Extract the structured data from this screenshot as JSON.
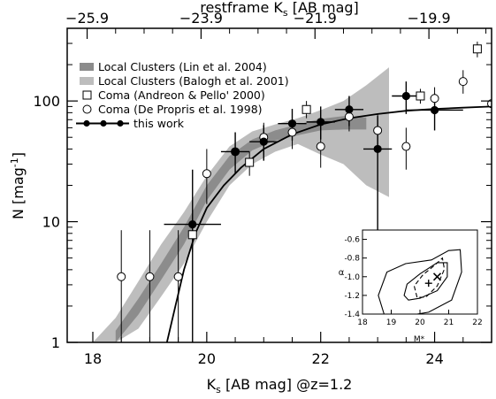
{
  "chart_data": {
    "type": "scatter",
    "xlabel_main": "K",
    "xlabel_sub": "s",
    "xlabel_rest": " [AB mag] @z=1.2",
    "x2label_main": "restframe K",
    "x2label_sub": "s",
    "x2label_rest": " [AB mag]",
    "ylabel_main": "N [mag",
    "ylabel_sup": "-1",
    "ylabel_rest": "]",
    "xlim": [
      17.55,
      25.0
    ],
    "ylim": [
      1,
      400
    ],
    "yscale": "log",
    "x_ticks": [
      {
        "v": 18,
        "label": "18"
      },
      {
        "v": 20,
        "label": "20"
      },
      {
        "v": 22,
        "label": "22"
      },
      {
        "v": 24,
        "label": "24"
      }
    ],
    "x2_ticks": [
      {
        "v": 17.9,
        "label": "−25.9"
      },
      {
        "v": 19.9,
        "label": "−23.9"
      },
      {
        "v": 21.9,
        "label": "−21.9"
      },
      {
        "v": 23.9,
        "label": "−19.9"
      }
    ],
    "y_ticks": [
      {
        "v": 1,
        "label": "1"
      },
      {
        "v": 10,
        "label": "10"
      },
      {
        "v": 100,
        "label": "100"
      }
    ],
    "legend_position": "top-left",
    "legend": [
      {
        "label": "Local Clusters (Lin et al. 2004)",
        "marker": "band-dark"
      },
      {
        "label": "Local Clusters (Balogh et al. 2001)",
        "marker": "band-light"
      },
      {
        "label": "Coma (Andreon & Pello' 2000)",
        "marker": "open-square"
      },
      {
        "label": "Coma (De Propris et al. 1998)",
        "marker": "open-circle"
      },
      {
        "label": "this work",
        "marker": "filled-circle-line"
      }
    ],
    "colors": {
      "band_dark": "#8c8c8c",
      "band_light": "#bdbdbd",
      "marks": "#000000"
    },
    "series": [
      {
        "name": "Local Clusters (Balogh et al. 2001)",
        "band": [
          {
            "x": 18.0,
            "lo": 1.0,
            "hi": 1.0
          },
          {
            "x": 18.4,
            "lo": 1.0,
            "hi": 1.6
          },
          {
            "x": 18.8,
            "lo": 1.3,
            "hi": 3.2
          },
          {
            "x": 19.2,
            "lo": 2.4,
            "hi": 6.5
          },
          {
            "x": 19.6,
            "lo": 4.5,
            "hi": 12.0
          },
          {
            "x": 20.0,
            "lo": 10.0,
            "hi": 24.0
          },
          {
            "x": 20.4,
            "lo": 20.0,
            "hi": 42.0
          },
          {
            "x": 20.8,
            "lo": 30.0,
            "hi": 56.0
          },
          {
            "x": 21.2,
            "lo": 38.0,
            "hi": 64.0
          },
          {
            "x": 21.6,
            "lo": 44.0,
            "hi": 72.0
          },
          {
            "x": 22.0,
            "lo": 36.0,
            "hi": 84.0
          },
          {
            "x": 22.4,
            "lo": 30.0,
            "hi": 100.0
          },
          {
            "x": 22.8,
            "lo": 20.0,
            "hi": 135.0
          },
          {
            "x": 23.2,
            "lo": 16.0,
            "hi": 190.0
          }
        ]
      },
      {
        "name": "Local Clusters (Lin et al. 2004)",
        "band": [
          {
            "x": 18.4,
            "lo": 1.0,
            "hi": 1.25
          },
          {
            "x": 18.8,
            "lo": 1.7,
            "hi": 2.3
          },
          {
            "x": 19.2,
            "lo": 3.3,
            "hi": 4.5
          },
          {
            "x": 19.6,
            "lo": 6.5,
            "hi": 9.0
          },
          {
            "x": 20.0,
            "lo": 15.0,
            "hi": 20.0
          },
          {
            "x": 20.4,
            "lo": 27.0,
            "hi": 35.0
          },
          {
            "x": 20.8,
            "lo": 39.0,
            "hi": 48.0
          },
          {
            "x": 21.2,
            "lo": 47.0,
            "hi": 57.0
          },
          {
            "x": 21.6,
            "lo": 52.0,
            "hi": 64.0
          },
          {
            "x": 22.0,
            "lo": 57.0,
            "hi": 71.0
          },
          {
            "x": 22.4,
            "lo": 58.0,
            "hi": 75.0
          },
          {
            "x": 22.8,
            "lo": 58.0,
            "hi": 73.0
          }
        ]
      },
      {
        "name": "Coma (Andreon & Pello' 2000)",
        "marker": "open-square",
        "points": [
          {
            "x": 19.75,
            "y": 7.8,
            "lo": 5.6,
            "hi": 10.5
          },
          {
            "x": 20.75,
            "y": 31,
            "lo": 24,
            "hi": 38
          },
          {
            "x": 21.75,
            "y": 85,
            "lo": 72,
            "hi": 100
          },
          {
            "x": 23.75,
            "y": 110,
            "lo": 95,
            "hi": 126
          },
          {
            "x": 24.75,
            "y": 270,
            "lo": 230,
            "hi": 310
          }
        ]
      },
      {
        "name": "Coma (De Propris et al. 1998)",
        "marker": "open-circle",
        "points": [
          {
            "x": 18.5,
            "y": 3.5,
            "lo": 1.0,
            "hi": 8.5
          },
          {
            "x": 19.0,
            "y": 3.5,
            "lo": 1.0,
            "hi": 8.5
          },
          {
            "x": 19.5,
            "y": 3.5,
            "lo": 1.0,
            "hi": 8.5
          },
          {
            "x": 20.0,
            "y": 25,
            "lo": 14,
            "hi": 40
          },
          {
            "x": 20.5,
            "y": 38,
            "lo": 25,
            "hi": 55
          },
          {
            "x": 21.0,
            "y": 50,
            "lo": 36,
            "hi": 66
          },
          {
            "x": 21.5,
            "y": 55,
            "lo": 40,
            "hi": 72
          },
          {
            "x": 22.0,
            "y": 42,
            "lo": 28,
            "hi": 60
          },
          {
            "x": 22.5,
            "y": 74,
            "lo": 56,
            "hi": 95
          },
          {
            "x": 23.0,
            "y": 57,
            "lo": 40,
            "hi": 78
          },
          {
            "x": 23.5,
            "y": 42,
            "lo": 27,
            "hi": 60
          },
          {
            "x": 24.0,
            "y": 105,
            "lo": 82,
            "hi": 130
          },
          {
            "x": 24.5,
            "y": 145,
            "lo": 115,
            "hi": 180
          },
          {
            "x": 25.0,
            "y": 95,
            "lo": 70,
            "hi": 125
          }
        ]
      },
      {
        "name": "this work",
        "marker": "filled-circle",
        "points": [
          {
            "x": 19.75,
            "y": 9.5,
            "xerr": 0.5,
            "lo": 1.0,
            "hi": 27
          },
          {
            "x": 20.5,
            "y": 38,
            "xerr": 0.25,
            "lo": 25,
            "hi": 55
          },
          {
            "x": 21.0,
            "y": 46,
            "xerr": 0.25,
            "lo": 32,
            "hi": 63
          },
          {
            "x": 21.5,
            "y": 65,
            "xerr": 0.25,
            "lo": 47,
            "hi": 86
          },
          {
            "x": 22.0,
            "y": 67,
            "xerr": 0.25,
            "lo": 48,
            "hi": 90
          },
          {
            "x": 22.5,
            "y": 85,
            "xerr": 0.25,
            "lo": 62,
            "hi": 110
          },
          {
            "x": 23.0,
            "y": 40,
            "xerr": 0.25,
            "lo": 5.5,
            "hi": 75
          },
          {
            "x": 23.5,
            "y": 110,
            "xerr": 0.25,
            "lo": 78,
            "hi": 145
          },
          {
            "x": 24.0,
            "y": 84,
            "xerr": 0.5,
            "lo": 57,
            "hi": 115
          }
        ]
      },
      {
        "name": "this work fit",
        "curve": [
          {
            "x": 19.3,
            "y": 1.0
          },
          {
            "x": 19.45,
            "y": 2.0
          },
          {
            "x": 19.6,
            "y": 4.0
          },
          {
            "x": 19.8,
            "y": 8.0
          },
          {
            "x": 20.0,
            "y": 13.0
          },
          {
            "x": 20.3,
            "y": 20.0
          },
          {
            "x": 20.6,
            "y": 28.0
          },
          {
            "x": 21.0,
            "y": 40.0
          },
          {
            "x": 21.5,
            "y": 53.0
          },
          {
            "x": 22.0,
            "y": 64.0
          },
          {
            "x": 22.5,
            "y": 72.0
          },
          {
            "x": 23.0,
            "y": 78.0
          },
          {
            "x": 23.5,
            "y": 83.0
          },
          {
            "x": 24.0,
            "y": 86.0
          },
          {
            "x": 24.5,
            "y": 88.0
          },
          {
            "x": 25.0,
            "y": 90.0
          }
        ]
      }
    ],
    "inset": {
      "xlabel": "M*",
      "ylabel": "α",
      "xlim": [
        18,
        22
      ],
      "ylim": [
        -1.4,
        -0.5
      ],
      "x_ticks": [
        {
          "v": 18,
          "label": "18"
        },
        {
          "v": 19,
          "label": "19"
        },
        {
          "v": 20,
          "label": "20"
        },
        {
          "v": 21,
          "label": "21"
        },
        {
          "v": 22,
          "label": "22"
        }
      ],
      "y_ticks": [
        {
          "v": -0.6,
          "label": "-0.6"
        },
        {
          "v": -0.8,
          "label": "-0.8"
        },
        {
          "v": -1.0,
          "label": "-1.0"
        },
        {
          "v": -1.2,
          "label": "-1.2"
        },
        {
          "v": -1.4,
          "label": "-1.4"
        }
      ],
      "best_fit_x": {
        "x": 20.6,
        "y": -1.0
      },
      "best_fit_plus": {
        "x": 20.3,
        "y": -1.07
      },
      "contour_outer": [
        [
          18.75,
          -1.4
        ],
        [
          18.55,
          -1.2
        ],
        [
          18.85,
          -0.95
        ],
        [
          19.5,
          -0.86
        ],
        [
          20.4,
          -0.82
        ],
        [
          21.0,
          -0.72
        ],
        [
          21.4,
          -0.71
        ],
        [
          21.45,
          -0.95
        ],
        [
          21.1,
          -1.25
        ],
        [
          20.3,
          -1.38
        ],
        [
          19.9,
          -1.4
        ]
      ],
      "contour_inner": [
        [
          19.45,
          -1.2
        ],
        [
          19.55,
          -1.08
        ],
        [
          20.0,
          -0.97
        ],
        [
          20.6,
          -0.85
        ],
        [
          20.95,
          -0.85
        ],
        [
          20.95,
          -1.0
        ],
        [
          20.6,
          -1.15
        ],
        [
          20.0,
          -1.23
        ],
        [
          19.6,
          -1.25
        ]
      ],
      "contour_dashed": [
        [
          19.9,
          -1.22
        ],
        [
          19.8,
          -1.1
        ],
        [
          20.1,
          -0.98
        ],
        [
          20.5,
          -0.88
        ],
        [
          20.78,
          -0.8
        ],
        [
          20.85,
          -0.92
        ],
        [
          20.6,
          -1.1
        ],
        [
          20.2,
          -1.22
        ]
      ]
    }
  }
}
